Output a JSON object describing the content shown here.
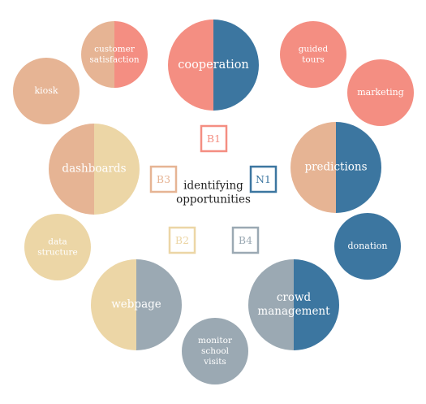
{
  "center": {
    "line1": "identifying",
    "line2": "opportunities"
  },
  "colors": {
    "salmon": "#f48e82",
    "tan": "#e6b494",
    "sand": "#ecd6a6",
    "slate": "#9ba9b3",
    "blue": "#3c76a0"
  },
  "codes": [
    {
      "id": "b1",
      "text": "B1",
      "color": "salmon"
    },
    {
      "id": "b3",
      "text": "B3",
      "color": "tan"
    },
    {
      "id": "n1",
      "text": "N1",
      "color": "blue"
    },
    {
      "id": "b2",
      "text": "B2",
      "color": "sand"
    },
    {
      "id": "b4",
      "text": "B4",
      "color": "slate"
    }
  ],
  "nodes": [
    {
      "id": "cooperation",
      "lines": [
        "cooperation"
      ],
      "left": "salmon",
      "right": "blue"
    },
    {
      "id": "customer-satisfaction",
      "lines": [
        "customer",
        "satisfaction"
      ],
      "left": "tan",
      "right": "salmon"
    },
    {
      "id": "guided-tours",
      "lines": [
        "guided",
        "tours"
      ],
      "left": "salmon",
      "right": "salmon"
    },
    {
      "id": "kiosk",
      "lines": [
        "kiosk"
      ],
      "left": "tan",
      "right": "tan"
    },
    {
      "id": "marketing",
      "lines": [
        "marketing"
      ],
      "left": "salmon",
      "right": "salmon"
    },
    {
      "id": "dashboards",
      "lines": [
        "dashboards"
      ],
      "left": "tan",
      "right": "sand"
    },
    {
      "id": "predictions",
      "lines": [
        "predictions"
      ],
      "left": "tan",
      "right": "blue"
    },
    {
      "id": "data-structure",
      "lines": [
        "data",
        "structure"
      ],
      "left": "sand",
      "right": "sand"
    },
    {
      "id": "donation",
      "lines": [
        "donation"
      ],
      "left": "blue",
      "right": "blue"
    },
    {
      "id": "webpage",
      "lines": [
        "webpage"
      ],
      "left": "sand",
      "right": "slate"
    },
    {
      "id": "crowd-management",
      "lines": [
        "crowd",
        "management"
      ],
      "left": "slate",
      "right": "blue"
    },
    {
      "id": "monitor-school-visits",
      "lines": [
        "monitor",
        "school",
        "visits"
      ],
      "left": "slate",
      "right": "slate"
    }
  ]
}
